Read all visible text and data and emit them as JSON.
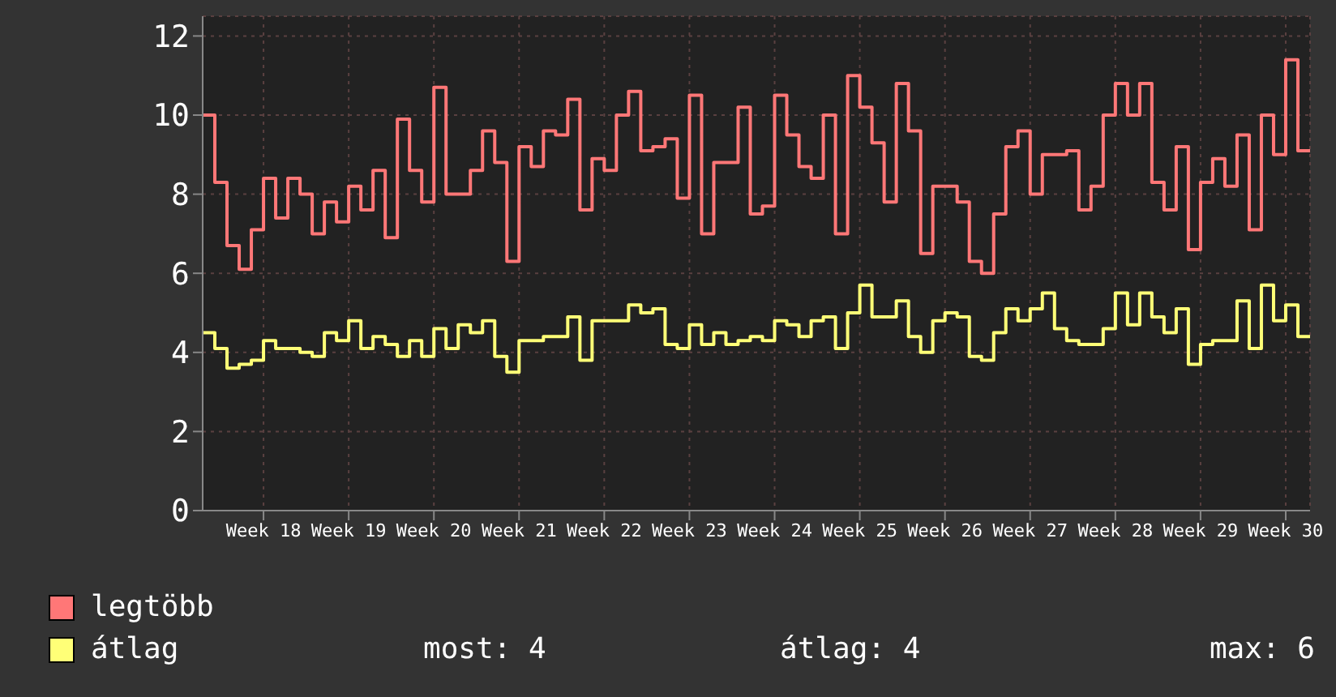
{
  "chart_data": {
    "type": "step",
    "categories": [
      null,
      null,
      null,
      null,
      null,
      "Week 18",
      null,
      null,
      null,
      null,
      null,
      null,
      "Week 19",
      null,
      null,
      null,
      null,
      null,
      null,
      "Week 20",
      null,
      null,
      null,
      null,
      null,
      null,
      "Week 21",
      null,
      null,
      null,
      null,
      null,
      null,
      "Week 22",
      null,
      null,
      null,
      null,
      null,
      null,
      "Week 23",
      null,
      null,
      null,
      null,
      null,
      null,
      "Week 24",
      null,
      null,
      null,
      null,
      null,
      null,
      "Week 25",
      null,
      null,
      null,
      null,
      null,
      null,
      "Week 26",
      null,
      null,
      null,
      null,
      null,
      null,
      "Week 27",
      null,
      null,
      null,
      null,
      null,
      null,
      "Week 28",
      null,
      null,
      null,
      null,
      null,
      null,
      "Week 29",
      null,
      null,
      null,
      null,
      null,
      null,
      "Week 30",
      null,
      null
    ],
    "series": [
      {
        "name": "legtöbb",
        "color": "#ff7777",
        "values": [
          10.0,
          8.3,
          6.7,
          6.1,
          7.1,
          8.4,
          7.4,
          8.4,
          8.0,
          7.0,
          7.8,
          7.3,
          8.2,
          7.6,
          8.6,
          6.9,
          9.9,
          8.6,
          7.8,
          10.7,
          8.0,
          8.0,
          8.6,
          9.6,
          8.8,
          6.3,
          9.2,
          8.7,
          9.6,
          9.5,
          10.4,
          7.6,
          8.9,
          8.6,
          10.0,
          10.6,
          9.1,
          9.2,
          9.4,
          7.9,
          10.5,
          7.0,
          8.8,
          8.8,
          10.2,
          7.5,
          7.7,
          10.5,
          9.5,
          8.7,
          8.4,
          10.0,
          7.0,
          11.0,
          10.2,
          9.3,
          7.8,
          10.8,
          9.6,
          6.5,
          8.2,
          8.2,
          7.8,
          6.3,
          6.0,
          7.5,
          9.2,
          9.6,
          8.0,
          9.0,
          9.0,
          9.1,
          7.6,
          8.2,
          10.0,
          10.8,
          10.0,
          10.8,
          8.3,
          7.6,
          9.2,
          6.6,
          8.3,
          8.9,
          8.2,
          9.5,
          7.1,
          10.0,
          9.0,
          11.4,
          9.1,
          9.1
        ]
      },
      {
        "name": "átlag",
        "color": "#ffff77",
        "values": [
          4.5,
          4.1,
          3.6,
          3.7,
          3.8,
          4.3,
          4.1,
          4.1,
          4.0,
          3.9,
          4.5,
          4.3,
          4.8,
          4.1,
          4.4,
          4.2,
          3.9,
          4.3,
          3.9,
          4.6,
          4.1,
          4.7,
          4.5,
          4.8,
          3.9,
          3.5,
          4.3,
          4.3,
          4.4,
          4.4,
          4.9,
          3.8,
          4.8,
          4.8,
          4.8,
          5.2,
          5.0,
          5.1,
          4.2,
          4.1,
          4.7,
          4.2,
          4.5,
          4.2,
          4.3,
          4.4,
          4.3,
          4.8,
          4.7,
          4.4,
          4.8,
          4.9,
          4.1,
          5.0,
          5.7,
          4.9,
          4.9,
          5.3,
          4.4,
          4.0,
          4.8,
          5.0,
          4.9,
          3.9,
          3.8,
          4.5,
          5.1,
          4.8,
          5.1,
          5.5,
          4.6,
          4.3,
          4.2,
          4.2,
          4.6,
          5.5,
          4.7,
          5.5,
          4.9,
          4.5,
          5.1,
          3.7,
          4.2,
          4.3,
          4.3,
          5.3,
          4.1,
          5.7,
          4.8,
          5.2,
          4.4,
          4.4
        ]
      }
    ],
    "ylim": [
      0,
      12.5
    ],
    "yticks": [
      0,
      2,
      4,
      6,
      8,
      10,
      12
    ],
    "grid": true,
    "legend": "bottom",
    "marker": "none",
    "line_style": "solid",
    "annotations": [
      "most: 4",
      "átlag: 4",
      "max: 6"
    ]
  }
}
